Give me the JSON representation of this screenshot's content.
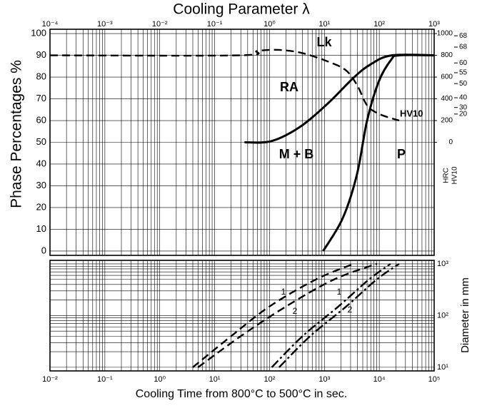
{
  "chart_data": [
    {
      "type": "line",
      "title": "Cooling Parameter λ",
      "ylabel": "Phase Percentages %",
      "x2log": true,
      "x2lim": [
        0.0001,
        1000
      ],
      "x2ticks": [
        {
          "value": 0.0001,
          "label": "10⁻⁴"
        },
        {
          "value": 0.001,
          "label": "10⁻³"
        },
        {
          "value": 0.01,
          "label": "10⁻²"
        },
        {
          "value": 0.1,
          "label": "10⁻¹"
        },
        {
          "value": 1,
          "label": "10⁰"
        },
        {
          "value": 10,
          "label": "10¹"
        },
        {
          "value": 100,
          "label": "10²"
        },
        {
          "value": 1000,
          "label": "10³"
        }
      ],
      "x2minorticks": [
        0.0002,
        0.0003,
        0.0004,
        0.0005,
        0.0006,
        0.0007,
        0.0008,
        0.0009,
        0.002,
        0.003,
        0.004,
        0.005,
        0.006,
        0.007,
        0.008,
        0.009,
        0.02,
        0.03,
        0.04,
        0.05,
        0.06,
        0.07,
        0.08,
        0.09,
        0.2,
        0.3,
        0.4,
        0.5,
        0.6,
        0.7,
        0.8,
        0.9,
        2,
        3,
        4,
        5,
        6,
        7,
        8,
        9,
        20,
        30,
        40,
        50,
        60,
        70,
        80,
        90,
        200,
        300,
        400,
        500,
        600,
        700,
        800,
        900
      ],
      "xlog": true,
      "xlim": [
        0.01,
        100000
      ],
      "ylim": [
        -2,
        102
      ],
      "yticks": [
        0,
        10,
        20,
        30,
        40,
        50,
        60,
        70,
        80,
        90,
        100
      ],
      "y2label": "HV10",
      "y2lim": [
        -1040,
        1040
      ],
      "y2ticks": [
        0,
        200,
        400,
        600,
        800,
        1000
      ],
      "hrclabel": "HRC",
      "hrcticks": [
        {
          "value": 260,
          "label": "20"
        },
        {
          "value": 320,
          "label": "30"
        },
        {
          "value": 410,
          "label": "40"
        },
        {
          "value": 540,
          "label": "50"
        },
        {
          "value": 640,
          "label": "55"
        },
        {
          "value": 730,
          "label": "60"
        },
        {
          "value": 876,
          "label": "68"
        },
        {
          "value": 980,
          "label": "68"
        }
      ],
      "annotations": [
        "RA",
        "M + B",
        "P",
        "Lk"
      ],
      "series": [
        {
          "name": "HV10",
          "axis": "y2",
          "color": "#000000",
          "dash": "dashed",
          "x": [
            0.01,
            28,
            60,
            150,
            400,
            1200,
            2500,
            4000,
            6000,
            10000,
            23000
          ],
          "values": [
            800,
            800,
            840,
            850,
            820,
            740,
            660,
            520,
            340,
            260,
            200
          ]
        },
        {
          "color": "#000000",
          "dash": "solid",
          "x": [
            35,
            107,
            355,
            1170,
            3500,
            7100,
            17000,
            100000
          ],
          "values": [
            50,
            50.5,
            57,
            68,
            80,
            86,
            90,
            90
          ]
        },
        {
          "color": "#000000",
          "dash": "solid",
          "x": [
            950,
            2150,
            3900,
            6000,
            9800,
            16500,
            23000,
            100000
          ],
          "values": [
            0,
            15,
            35,
            60,
            78,
            88,
            90,
            90
          ]
        }
      ]
    },
    {
      "type": "line",
      "xlabel": "Cooling Time from 800°C to 500°C in sec.",
      "xlog": true,
      "xlim": [
        0.01,
        100000
      ],
      "xticks": [
        {
          "value": 0.01,
          "label": "10⁻²"
        },
        {
          "value": 0.1,
          "label": "10⁻¹"
        },
        {
          "value": 1,
          "label": "10⁰"
        },
        {
          "value": 10,
          "label": "10¹"
        },
        {
          "value": 100,
          "label": "10²"
        },
        {
          "value": 1000,
          "label": "10³"
        },
        {
          "value": 10000,
          "label": "10⁴"
        },
        {
          "value": 100000,
          "label": "10⁵"
        }
      ],
      "xminorticks": [
        0.02,
        0.03,
        0.04,
        0.05,
        0.06,
        0.07,
        0.08,
        0.09,
        0.2,
        0.3,
        0.4,
        0.5,
        0.6,
        0.7,
        0.8,
        0.9,
        2,
        3,
        4,
        5,
        6,
        7,
        8,
        9,
        20,
        30,
        40,
        50,
        60,
        70,
        80,
        90,
        200,
        300,
        400,
        500,
        600,
        700,
        800,
        900,
        2000,
        3000,
        4000,
        5000,
        6000,
        7000,
        8000,
        9000,
        20000,
        30000,
        40000,
        50000,
        60000,
        70000,
        80000,
        90000
      ],
      "ylabel": "Diameter in mm",
      "ylog": true,
      "ylim": [
        8.5,
        1170
      ],
      "yticks": [
        {
          "value": 10,
          "label": "10¹"
        },
        {
          "value": 100,
          "label": "10²"
        },
        {
          "value": 1000,
          "label": "10³"
        }
      ],
      "yminorticks": [
        20,
        30,
        40,
        50,
        60,
        70,
        80,
        90,
        200,
        300,
        400,
        500,
        600,
        700,
        800,
        900
      ],
      "series": [
        {
          "name": "1",
          "color": "#000000",
          "dash": "dashed",
          "x": [
            4,
            20,
            100,
            700,
            3400
          ],
          "values": [
            10,
            40,
            150,
            500,
            1000
          ]
        },
        {
          "name": "2",
          "color": "#000000",
          "dash": "dashed",
          "x": [
            5,
            30,
            200,
            1500,
            9000
          ],
          "values": [
            10,
            40,
            150,
            500,
            1000
          ]
        },
        {
          "name": "1",
          "color": "#000000",
          "dash": "dashdot",
          "x": [
            110,
            400,
            1800,
            6500,
            16000
          ],
          "values": [
            10,
            40,
            150,
            500,
            1000
          ]
        },
        {
          "name": "2",
          "color": "#000000",
          "dash": "dashdot",
          "x": [
            150,
            550,
            2500,
            9000,
            23000
          ],
          "values": [
            10,
            40,
            150,
            500,
            1000
          ]
        }
      ]
    }
  ]
}
